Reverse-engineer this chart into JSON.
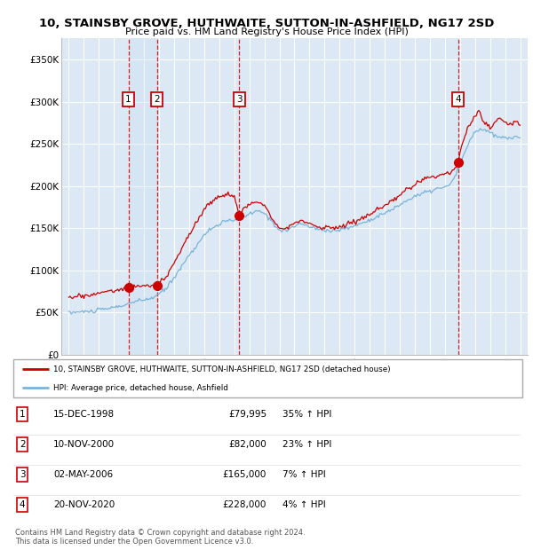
{
  "title": "10, STAINSBY GROVE, HUTHWAITE, SUTTON-IN-ASHFIELD, NG17 2SD",
  "subtitle": "Price paid vs. HM Land Registry's House Price Index (HPI)",
  "ylabel_ticks": [
    "£0",
    "£50K",
    "£100K",
    "£150K",
    "£200K",
    "£250K",
    "£300K",
    "£350K"
  ],
  "ytick_values": [
    0,
    50000,
    100000,
    150000,
    200000,
    250000,
    300000,
    350000
  ],
  "ylim": [
    0,
    375000
  ],
  "xlim_start": 1994.5,
  "xlim_end": 2025.5,
  "background_color": "#dce9f5",
  "grid_color": "#ffffff",
  "sale_dates": [
    1998.96,
    2000.86,
    2006.33,
    2020.89
  ],
  "sale_prices": [
    79995,
    82000,
    165000,
    228000
  ],
  "sale_labels": [
    "1",
    "2",
    "3",
    "4"
  ],
  "legend_line1": "10, STAINSBY GROVE, HUTHWAITE, SUTTON-IN-ASHFIELD, NG17 2SD (detached house)",
  "legend_line2": "HPI: Average price, detached house, Ashfield",
  "table_rows": [
    [
      "1",
      "15-DEC-1998",
      "£79,995",
      "35% ↑ HPI"
    ],
    [
      "2",
      "10-NOV-2000",
      "£82,000",
      "23% ↑ HPI"
    ],
    [
      "3",
      "02-MAY-2006",
      "£165,000",
      "7% ↑ HPI"
    ],
    [
      "4",
      "20-NOV-2020",
      "£228,000",
      "4% ↑ HPI"
    ]
  ],
  "footer": "Contains HM Land Registry data © Crown copyright and database right 2024.\nThis data is licensed under the Open Government Licence v3.0.",
  "red_line_color": "#cc0000",
  "blue_line_color": "#7ab3d9",
  "vline_color": "#cc0000",
  "box_color": "#cc0000",
  "shade_color": "#ccdff0"
}
